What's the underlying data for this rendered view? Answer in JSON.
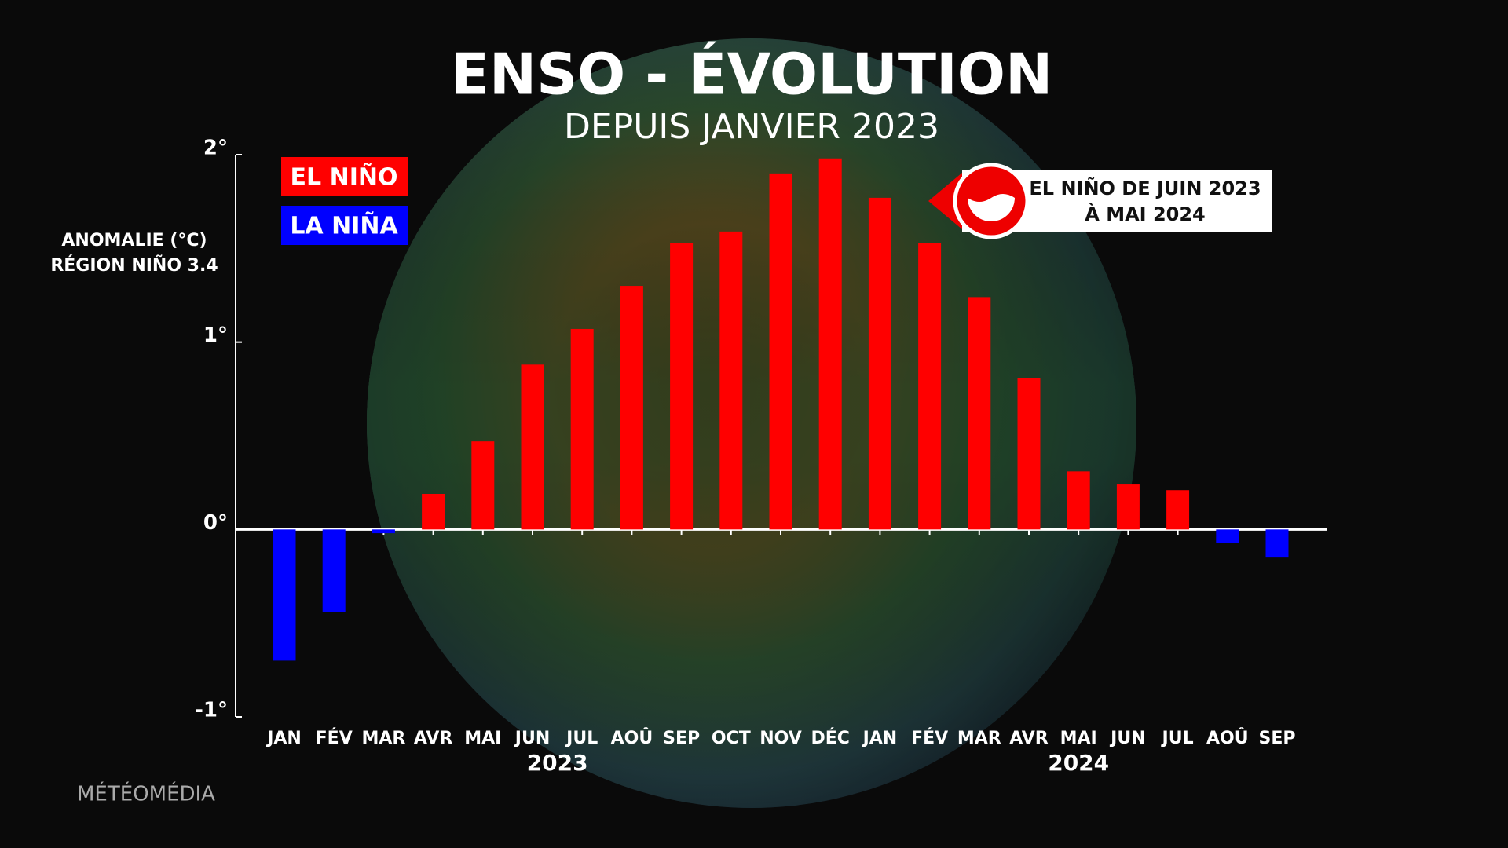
{
  "chart_data": {
    "type": "bar",
    "title": "ENSO - ÉVOLUTION",
    "subtitle": "DEPUIS JANVIER 2023",
    "y_axis_label": [
      "ANOMALIE (°C)",
      "RÉGION NIÑO 3.4"
    ],
    "categories": [
      "JAN",
      "FÉV",
      "MAR",
      "AVR",
      "MAI",
      "JUN",
      "JUL",
      "AOÛ",
      "SEP",
      "OCT",
      "NOV",
      "DÉC",
      "JAN",
      "FÉV",
      "MAR",
      "AVR",
      "MAI",
      "JUN",
      "JUL",
      "AOÛ",
      "SEP"
    ],
    "years": [
      "2023",
      "2024"
    ],
    "series": [
      {
        "name": "EL NIÑO",
        "color": "#ff0000",
        "values": [
          null,
          null,
          null,
          0.19,
          0.47,
          0.88,
          1.07,
          1.3,
          1.53,
          1.59,
          1.9,
          1.98,
          1.77,
          1.53,
          1.24,
          0.81,
          0.31,
          0.24,
          0.21,
          null,
          null
        ]
      },
      {
        "name": "LA NIÑA",
        "color": "#0000ff",
        "values": [
          -0.7,
          -0.44,
          -0.02,
          null,
          null,
          null,
          null,
          null,
          null,
          null,
          null,
          null,
          null,
          null,
          null,
          null,
          null,
          null,
          null,
          -0.07,
          -0.15
        ]
      }
    ],
    "ylim": [
      -1,
      2
    ],
    "yticks": [
      {
        "value": -1,
        "label": "-1°"
      },
      {
        "value": 0,
        "label": "0°"
      },
      {
        "value": 1,
        "label": "1°"
      },
      {
        "value": 2,
        "label": "2°"
      }
    ],
    "grid": false,
    "annotation": [
      "EL NIÑO DE JUIN 2023",
      "À MAI 2024"
    ],
    "brand": "MÉTÉOMÉDIA"
  }
}
